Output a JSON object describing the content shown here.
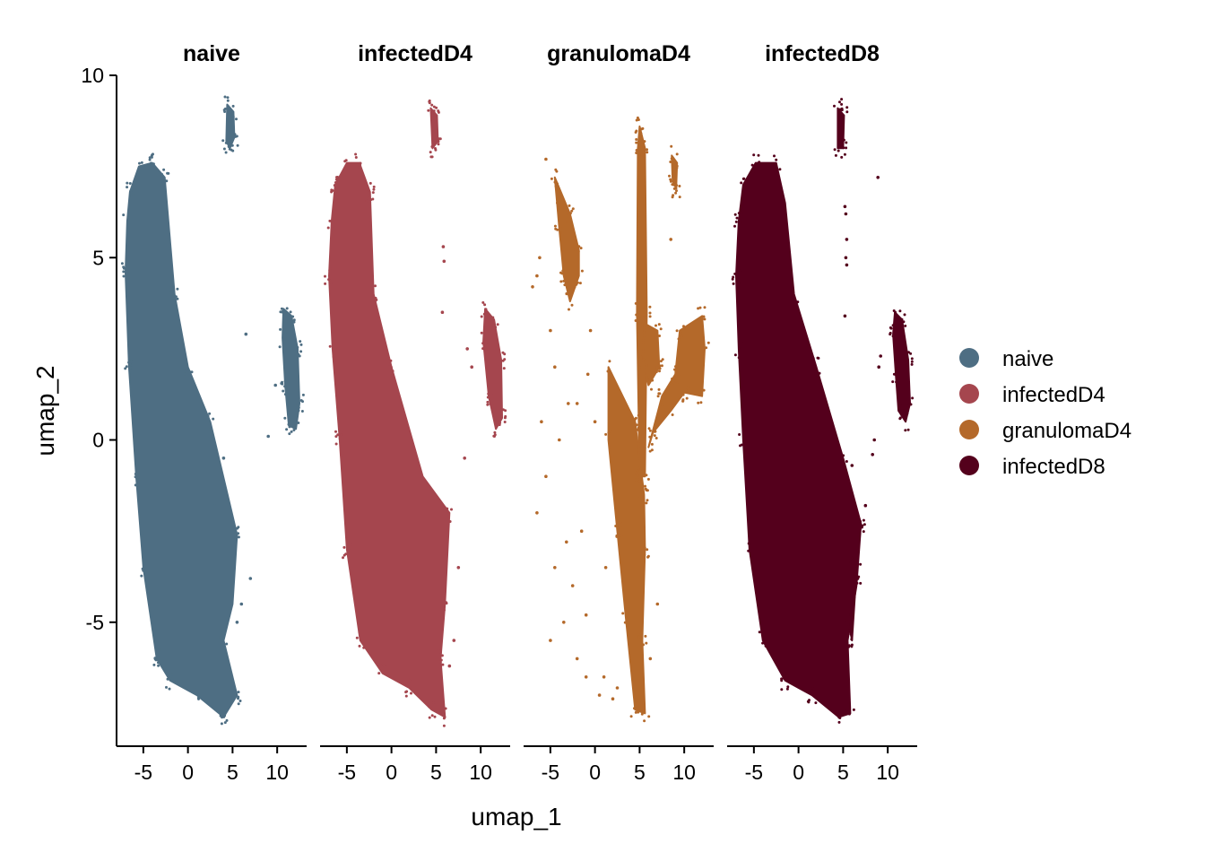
{
  "chart_data": {
    "type": "scatter",
    "panels": [
      "naive",
      "infectedD4",
      "granulomaD4",
      "infectedD8"
    ],
    "xlabel": "umap_1",
    "ylabel": "umap_2",
    "xlim": [
      -8,
      13.3
    ],
    "ylim": [
      -8.4,
      10
    ],
    "x_ticks": [
      -5,
      0,
      5,
      10
    ],
    "x_tick_labels": [
      "-5",
      "0",
      "5",
      "10"
    ],
    "y_ticks": [
      -5,
      0,
      5,
      10
    ],
    "y_tick_labels": [
      "-5",
      "0",
      "5",
      "10"
    ],
    "legend": {
      "placement": "right",
      "entries": [
        {
          "name": "naive",
          "color": "#4E6E83"
        },
        {
          "name": "infectedD4",
          "color": "#A5464E"
        },
        {
          "name": "granulomaD4",
          "color": "#B4692A"
        },
        {
          "name": "infectedD8",
          "color": "#54001C"
        }
      ]
    },
    "grid": false,
    "series": [
      {
        "name": "naive",
        "color": "#4E6E83",
        "shapes": [
          {
            "kind": "band",
            "top": [
              [
                -7,
                4.6
              ],
              [
                -6.8,
                6.0
              ],
              [
                -6.5,
                6.8
              ],
              [
                -5.5,
                7.5
              ],
              [
                -4,
                7.6
              ],
              [
                -2.6,
                7.2
              ],
              [
                -1.5,
                4.0
              ],
              [
                0,
                2.0
              ],
              [
                2.5,
                0.5
              ],
              [
                5.5,
                -2.6
              ],
              [
                5.0,
                -4.5
              ],
              [
                4.0,
                -5.5
              ],
              [
                5.5,
                -7.0
              ],
              [
                4.0,
                -7.6
              ],
              [
                1.0,
                -7.0
              ],
              [
                -2,
                -6.6
              ],
              [
                -3.5,
                -6.0
              ],
              [
                -5.0,
                -3.5
              ],
              [
                -5.8,
                -1.0
              ],
              [
                -6.6,
                2.0
              ]
            ]
          },
          {
            "kind": "band",
            "top": [
              [
                4.4,
                9.2
              ],
              [
                5.1,
                9.0
              ],
              [
                5.2,
                8.3
              ],
              [
                4.7,
                8.0
              ],
              [
                4.3,
                8.2
              ]
            ]
          },
          {
            "kind": "band",
            "top": [
              [
                10.7,
                3.6
              ],
              [
                11.6,
                3.4
              ],
              [
                12.3,
                2.5
              ],
              [
                12.5,
                1.0
              ],
              [
                12.1,
                0.3
              ],
              [
                11.3,
                0.4
              ],
              [
                10.9,
                1.5
              ],
              [
                10.6,
                2.8
              ]
            ]
          }
        ],
        "scatter": [
          [
            6.5,
            2.9
          ],
          [
            9.8,
            1.5
          ],
          [
            9.0,
            0.1
          ],
          [
            7.0,
            -3.8
          ],
          [
            6.0,
            -4.5
          ],
          [
            5.5,
            -5.0
          ],
          [
            3.0,
            -1.8
          ],
          [
            4.0,
            -0.5
          ]
        ]
      },
      {
        "name": "infectedD4",
        "color": "#A5464E",
        "shapes": [
          {
            "kind": "band",
            "top": [
              [
                -7,
                4.5
              ],
              [
                -6.7,
                6.0
              ],
              [
                -6.3,
                7.0
              ],
              [
                -5,
                7.6
              ],
              [
                -3.6,
                7.6
              ],
              [
                -2.4,
                6.8
              ],
              [
                -2.0,
                4.0
              ],
              [
                0,
                2.0
              ],
              [
                3.5,
                -1.0
              ],
              [
                6.5,
                -2.0
              ],
              [
                6.0,
                -4.5
              ],
              [
                5.5,
                -6.0
              ],
              [
                6.0,
                -7.6
              ],
              [
                4.5,
                -7.4
              ],
              [
                2.0,
                -6.8
              ],
              [
                -1,
                -6.4
              ],
              [
                -3.5,
                -5.5
              ],
              [
                -5.0,
                -3.0
              ],
              [
                -5.8,
                0.0
              ],
              [
                -6.6,
                2.5
              ]
            ]
          },
          {
            "kind": "band",
            "top": [
              [
                4.4,
                9.1
              ],
              [
                5.1,
                8.9
              ],
              [
                5.2,
                8.2
              ],
              [
                4.6,
                8.0
              ]
            ]
          },
          {
            "kind": "band",
            "top": [
              [
                10.5,
                3.6
              ],
              [
                11.5,
                3.3
              ],
              [
                12.3,
                2.2
              ],
              [
                12.4,
                0.6
              ],
              [
                11.7,
                0.3
              ],
              [
                10.9,
                1.2
              ],
              [
                10.3,
                2.7
              ]
            ]
          }
        ],
        "scatter": [
          [
            5.8,
            5.3
          ],
          [
            5.9,
            4.9
          ],
          [
            5.7,
            3.5
          ],
          [
            8.5,
            2.5
          ],
          [
            9.0,
            2.0
          ],
          [
            8.2,
            -0.5
          ],
          [
            7.5,
            -3.5
          ],
          [
            7.0,
            -5.5
          ],
          [
            6.5,
            -6.2
          ]
        ]
      },
      {
        "name": "granulomaD4",
        "color": "#B4692A",
        "shapes": [
          {
            "kind": "band",
            "top": [
              [
                -4.5,
                7.2
              ],
              [
                -2.8,
                6.2
              ],
              [
                -1.8,
                5.2
              ],
              [
                -1.8,
                4.5
              ],
              [
                -2.8,
                3.8
              ],
              [
                -3.5,
                4.5
              ],
              [
                -4.0,
                5.8
              ]
            ]
          },
          {
            "kind": "band",
            "top": [
              [
                1.5,
                2.0
              ],
              [
                4.5,
                0.5
              ],
              [
                5.5,
                -1.5
              ],
              [
                5.6,
                -3.0
              ],
              [
                5.3,
                -5.5
              ],
              [
                5.6,
                -7.5
              ],
              [
                4.5,
                -7.4
              ],
              [
                3.5,
                -5.0
              ],
              [
                2.5,
                -2.5
              ],
              [
                1.5,
                0.0
              ]
            ]
          },
          {
            "kind": "band",
            "top": [
              [
                5.0,
                8.6
              ],
              [
                5.6,
                8.0
              ],
              [
                5.8,
                3.5
              ],
              [
                5.6,
                -1.0
              ],
              [
                5.0,
                -1.0
              ],
              [
                4.7,
                3.5
              ],
              [
                4.8,
                8.0
              ]
            ]
          },
          {
            "kind": "band",
            "top": [
              [
                9.5,
                3.0
              ],
              [
                12.0,
                3.4
              ],
              [
                12.3,
                2.5
              ],
              [
                12.0,
                1.2
              ],
              [
                10.0,
                1.3
              ],
              [
                8.5,
                0.8
              ],
              [
                6.5,
                0.2
              ],
              [
                6.0,
                -0.2
              ],
              [
                7.5,
                1.2
              ],
              [
                9.0,
                1.8
              ]
            ]
          },
          {
            "kind": "band",
            "top": [
              [
                5.5,
                3.2
              ],
              [
                7.0,
                3.0
              ],
              [
                7.2,
                2.0
              ],
              [
                6.0,
                1.5
              ],
              [
                5.4,
                2.2
              ]
            ]
          },
          {
            "kind": "band",
            "top": [
              [
                8.6,
                7.8
              ],
              [
                9.2,
                7.6
              ],
              [
                9.1,
                6.9
              ],
              [
                8.7,
                7.1
              ]
            ]
          }
        ],
        "scatter": [
          [
            -5.5,
            7.7
          ],
          [
            -6.2,
            5.0
          ],
          [
            -6.5,
            4.5
          ],
          [
            -7.0,
            4.2
          ],
          [
            -5.0,
            3.0
          ],
          [
            -3.0,
            1.0
          ],
          [
            -4.0,
            0.0
          ],
          [
            -5.5,
            -1.0
          ],
          [
            -4.5,
            -3.5
          ],
          [
            -3.5,
            -5.0
          ],
          [
            -2.0,
            -6.0
          ],
          [
            -1.0,
            -6.5
          ],
          [
            0.5,
            -7.0
          ],
          [
            -2.5,
            -4.0
          ],
          [
            -1.5,
            -2.5
          ],
          [
            0.0,
            0.5
          ],
          [
            -0.5,
            3.0
          ],
          [
            -4.5,
            2.0
          ],
          [
            -6.5,
            -2.0
          ],
          [
            -5.0,
            -5.5
          ],
          [
            1.0,
            -6.5
          ],
          [
            2.5,
            -6.8
          ],
          [
            8.5,
            5.5
          ],
          [
            7.0,
            -4.5
          ],
          [
            6.2,
            -6.0
          ],
          [
            -2.3,
            4.2
          ],
          [
            -0.8,
            1.8
          ],
          [
            -3.2,
            -2.8
          ],
          [
            -1.0,
            -4.8
          ],
          [
            1.2,
            -3.5
          ],
          [
            2.0,
            -7.1
          ],
          [
            -4.2,
            6.5
          ],
          [
            -2.0,
            1.0
          ],
          [
            -6.0,
            0.5
          ]
        ]
      },
      {
        "name": "infectedD8",
        "color": "#54001C",
        "shapes": [
          {
            "kind": "band",
            "top": [
              [
                -7,
                4.5
              ],
              [
                -6.7,
                6.0
              ],
              [
                -6.2,
                7.0
              ],
              [
                -4.8,
                7.6
              ],
              [
                -2.5,
                7.6
              ],
              [
                -1.5,
                6.5
              ],
              [
                -0.5,
                4.0
              ],
              [
                2.0,
                2.0
              ],
              [
                5.0,
                -0.5
              ],
              [
                7.0,
                -2.3
              ],
              [
                6.5,
                -4.0
              ],
              [
                5.5,
                -5.5
              ],
              [
                5.8,
                -7.5
              ],
              [
                4.5,
                -7.6
              ],
              [
                1.5,
                -7.0
              ],
              [
                -1.5,
                -6.6
              ],
              [
                -4.0,
                -5.5
              ],
              [
                -5.5,
                -3.0
              ],
              [
                -6.2,
                0.0
              ],
              [
                -6.7,
                2.5
              ]
            ]
          },
          {
            "kind": "band",
            "top": [
              [
                4.4,
                9.1
              ],
              [
                5.1,
                8.9
              ],
              [
                5.0,
                8.0
              ],
              [
                4.4,
                8.0
              ]
            ]
          },
          {
            "kind": "band",
            "top": [
              [
                10.8,
                3.5
              ],
              [
                11.6,
                3.3
              ],
              [
                12.3,
                2.2
              ],
              [
                12.5,
                1.0
              ],
              [
                12.0,
                0.5
              ],
              [
                11.2,
                0.8
              ],
              [
                10.9,
                1.8
              ],
              [
                10.6,
                2.9
              ]
            ]
          },
          {
            "kind": "band",
            "top": [
              [
                5.8,
                -3.3
              ],
              [
                6.5,
                -3.6
              ],
              [
                6.0,
                -5.5
              ],
              [
                5.6,
                -5.0
              ]
            ]
          }
        ],
        "scatter": [
          [
            5.2,
            6.4
          ],
          [
            5.3,
            6.2
          ],
          [
            5.4,
            5.5
          ],
          [
            5.3,
            5.0
          ],
          [
            5.4,
            4.8
          ],
          [
            8.9,
            7.2
          ],
          [
            9.0,
            2.0
          ],
          [
            9.2,
            2.3
          ],
          [
            8.5,
            0.0
          ],
          [
            8.3,
            -0.4
          ],
          [
            5.2,
            3.4
          ],
          [
            6.0,
            -0.7
          ],
          [
            7.5,
            -1.8
          ],
          [
            6.8,
            -2.2
          ]
        ]
      }
    ]
  }
}
